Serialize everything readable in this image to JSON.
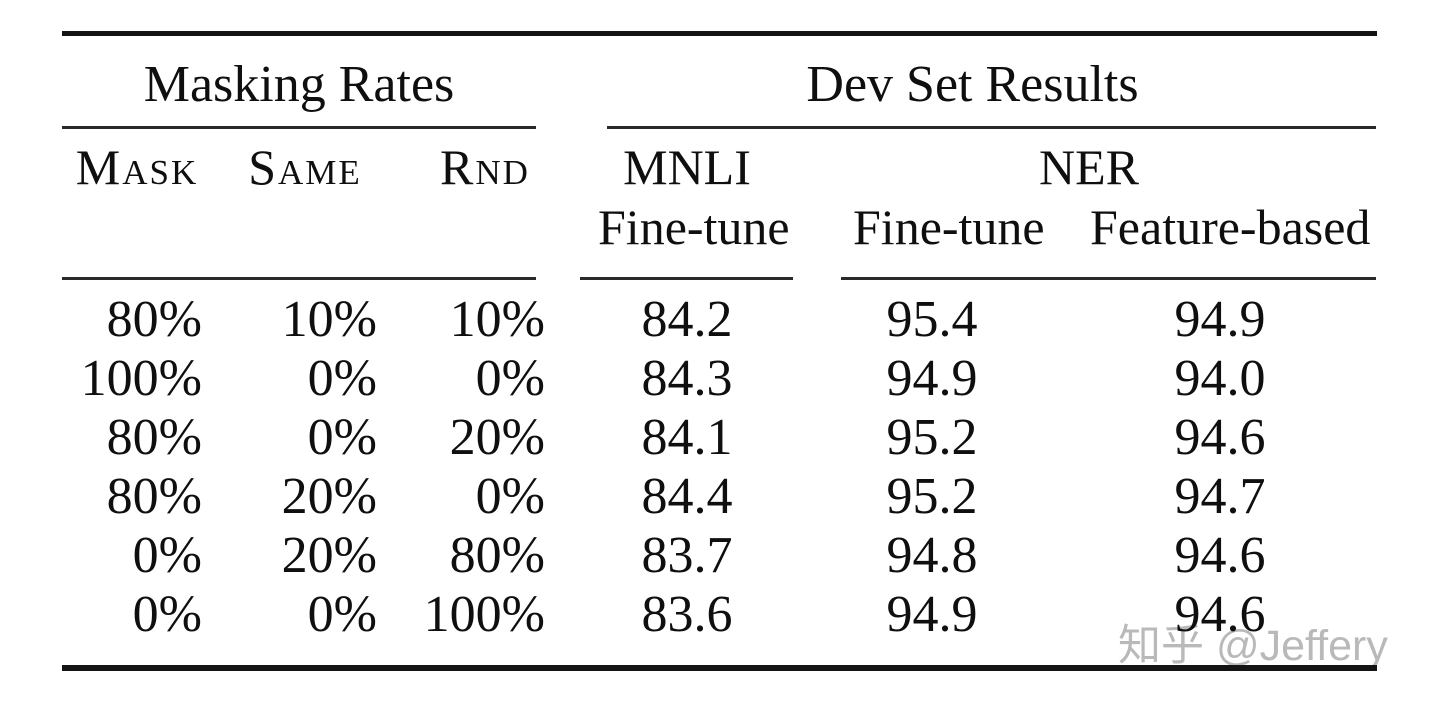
{
  "table": {
    "group_headers": {
      "masking_rates": "Masking Rates",
      "dev_set_results": "Dev Set Results"
    },
    "column_headers": {
      "mask": "Mask",
      "same": "Same",
      "rnd": "Rnd",
      "mnli": "MNLI",
      "ner": "NER",
      "mnli_subheader": "Fine-tune",
      "ner_subheader_1": "Fine-tune",
      "ner_subheader_2": "Feature-based"
    },
    "rows": [
      [
        "80%",
        "10%",
        "10%",
        "84.2",
        "95.4",
        "94.9"
      ],
      [
        "100%",
        "0%",
        "0%",
        "84.3",
        "94.9",
        "94.0"
      ],
      [
        "80%",
        "0%",
        "20%",
        "84.1",
        "95.2",
        "94.6"
      ],
      [
        "80%",
        "20%",
        "0%",
        "84.4",
        "95.2",
        "94.7"
      ],
      [
        "0%",
        "20%",
        "80%",
        "83.7",
        "94.8",
        "94.6"
      ],
      [
        "0%",
        "0%",
        "100%",
        "83.6",
        "94.9",
        "94.6"
      ]
    ]
  },
  "watermark": {
    "text": "知乎 @Jeffery",
    "color": "#b9b9b9"
  },
  "colors": {
    "background": "#ffffff",
    "text": "#0f0f0f",
    "thick_rule": "#141414",
    "thin_rule": "#2a2a2a"
  }
}
